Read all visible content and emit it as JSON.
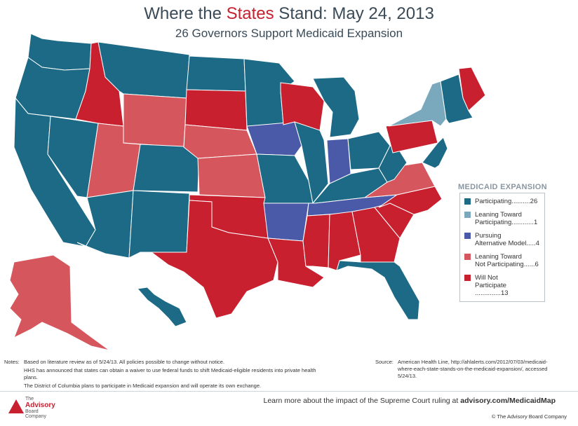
{
  "header": {
    "title_before": "Where the ",
    "title_accent": "States",
    "title_after": " Stand: May 24, 2013",
    "subtitle": "26 Governors Support Medicaid Expansion"
  },
  "colors": {
    "participating": "#1c6a86",
    "leaning_participating": "#7aa9bd",
    "alternative": "#4a5aa8",
    "leaning_not": "#d5575d",
    "will_not": "#c8202f"
  },
  "legend": {
    "title": "MEDICAID EXPANSION",
    "items": [
      {
        "key": "participating",
        "label": "Participating..........26"
      },
      {
        "key": "leaning_participating",
        "label": "Leaning Toward\nParticipating............1"
      },
      {
        "key": "alternative",
        "label": "Pursuing\nAlternative Model.....4"
      },
      {
        "key": "leaning_not",
        "label": "Leaning Toward\nNot Participating......6"
      },
      {
        "key": "will_not",
        "label": "Will Not\nParticipate ..............13"
      }
    ]
  },
  "states": [
    {
      "name": "WA",
      "status": "participating"
    },
    {
      "name": "OR",
      "status": "participating"
    },
    {
      "name": "CA",
      "status": "participating"
    },
    {
      "name": "NV",
      "status": "participating"
    },
    {
      "name": "ID",
      "status": "will_not"
    },
    {
      "name": "MT",
      "status": "participating"
    },
    {
      "name": "WY",
      "status": "leaning_not"
    },
    {
      "name": "UT",
      "status": "leaning_not"
    },
    {
      "name": "AZ",
      "status": "participating"
    },
    {
      "name": "CO",
      "status": "participating"
    },
    {
      "name": "NM",
      "status": "participating"
    },
    {
      "name": "ND",
      "status": "participating"
    },
    {
      "name": "SD",
      "status": "will_not"
    },
    {
      "name": "NE",
      "status": "leaning_not"
    },
    {
      "name": "KS",
      "status": "leaning_not"
    },
    {
      "name": "OK",
      "status": "will_not"
    },
    {
      "name": "TX",
      "status": "will_not"
    },
    {
      "name": "MN",
      "status": "participating"
    },
    {
      "name": "IA",
      "status": "alternative"
    },
    {
      "name": "MO",
      "status": "participating"
    },
    {
      "name": "AR",
      "status": "alternative"
    },
    {
      "name": "LA",
      "status": "will_not"
    },
    {
      "name": "WI",
      "status": "will_not"
    },
    {
      "name": "IL",
      "status": "participating"
    },
    {
      "name": "MI",
      "status": "participating"
    },
    {
      "name": "IN",
      "status": "alternative"
    },
    {
      "name": "OH",
      "status": "participating"
    },
    {
      "name": "KY",
      "status": "participating"
    },
    {
      "name": "TN",
      "status": "alternative"
    },
    {
      "name": "MS",
      "status": "will_not"
    },
    {
      "name": "AL",
      "status": "will_not"
    },
    {
      "name": "GA",
      "status": "will_not"
    },
    {
      "name": "FL",
      "status": "participating"
    },
    {
      "name": "SC",
      "status": "will_not"
    },
    {
      "name": "NC",
      "status": "will_not"
    },
    {
      "name": "VA",
      "status": "leaning_not"
    },
    {
      "name": "WV",
      "status": "participating"
    },
    {
      "name": "PA",
      "status": "will_not"
    },
    {
      "name": "NY",
      "status": "leaning_participating"
    },
    {
      "name": "ME",
      "status": "will_not"
    },
    {
      "name": "NE-states",
      "status": "participating"
    },
    {
      "name": "MD-DE-NJ",
      "status": "participating"
    },
    {
      "name": "AK",
      "status": "leaning_not"
    },
    {
      "name": "HI",
      "status": "participating"
    }
  ],
  "notes": {
    "label": "Notes:",
    "lines": [
      "Based on literature review as of 5/24/13. All policies possible to change without notice.",
      "HHS has announced that states can obtain a waiver to use federal funds to shift Medicaid-eligible residents into private health plans.",
      "The District of Columbia plans to participate in Medicaid expansion and will operate its own exchange."
    ]
  },
  "source": {
    "label": "Source:",
    "text": "American Health Line, http://ahlalerts.com/2012/07/03/medicaid-where-each-state-stands-on-the-medicaid-expansion/, accessed 5/24/13."
  },
  "footer": {
    "logo_the": "The",
    "logo_advisory": "Advisory",
    "logo_board": "Board",
    "logo_company": "Company",
    "learn_text": "Learn more about the impact of the Supreme Court ruling at ",
    "learn_link": "advisory.com/MedicaidMap",
    "copyright": "© The Advisory Board Company"
  }
}
